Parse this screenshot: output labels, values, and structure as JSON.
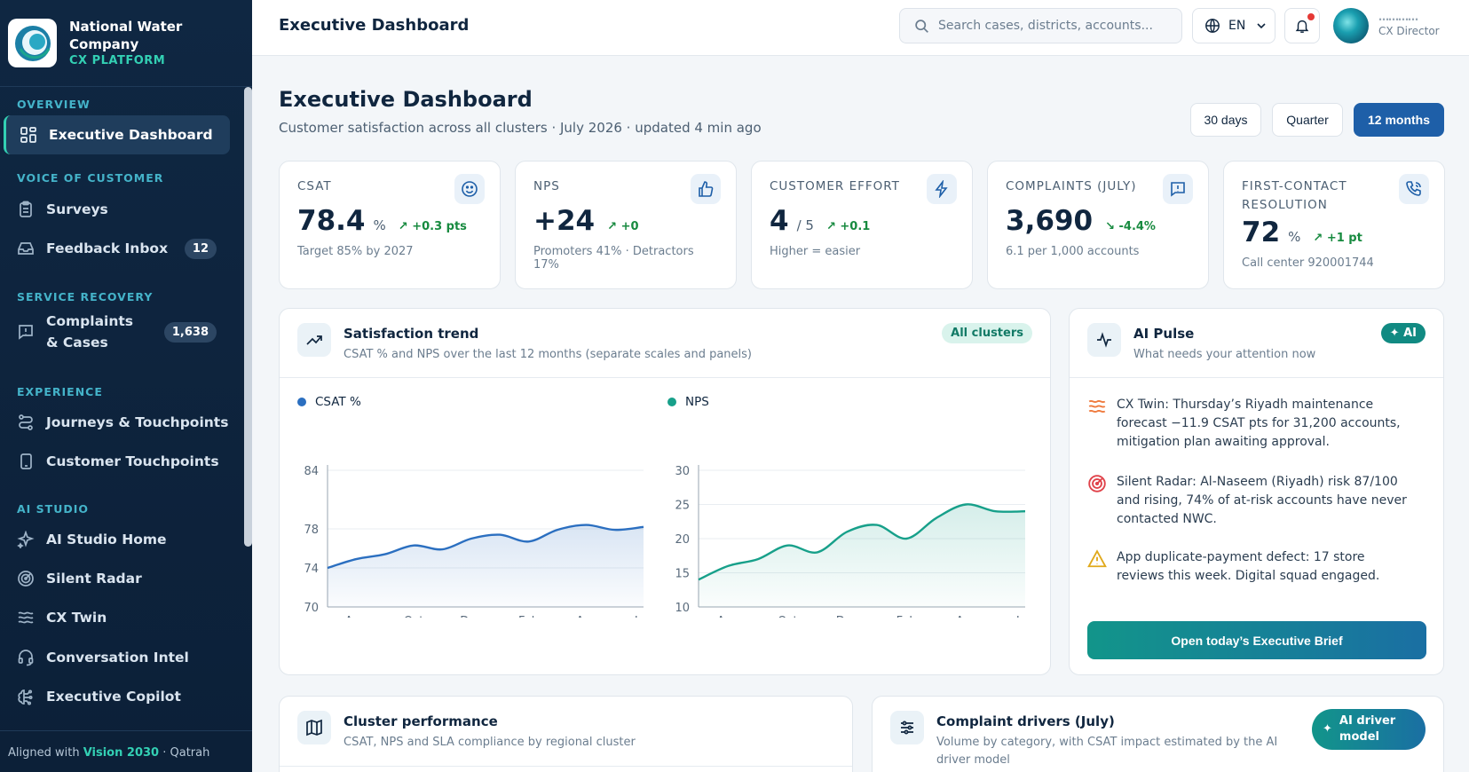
{
  "brand": {
    "name": "National Water Company",
    "platform": "CX PLATFORM"
  },
  "sidebar": {
    "sections": [
      "OVERVIEW",
      "VOICE OF CUSTOMER",
      "SERVICE RECOVERY",
      "EXPERIENCE",
      "AI STUDIO"
    ],
    "items": [
      {
        "label": "Executive Dashboard",
        "icon": "dashboard-icon",
        "active": true
      },
      {
        "label": "Surveys",
        "icon": "clipboard-icon"
      },
      {
        "label": "Feedback Inbox",
        "icon": "inbox-icon",
        "badge": "12"
      },
      {
        "label": "Complaints & Cases",
        "icon": "message-alert-icon",
        "badge": "1,638"
      },
      {
        "label": "Journeys & Touchpoints",
        "icon": "route-icon"
      },
      {
        "label": "Customer Touchpoints",
        "icon": "tablet-icon"
      },
      {
        "label": "AI Studio Home",
        "icon": "sparkles-icon"
      },
      {
        "label": "Silent Radar",
        "icon": "radar-icon"
      },
      {
        "label": "CX Twin",
        "icon": "waves-icon"
      },
      {
        "label": "Conversation Intel",
        "icon": "headset-icon"
      },
      {
        "label": "Executive Copilot",
        "icon": "brain-icon"
      }
    ],
    "footer_prefix": "Aligned with ",
    "footer_highlight": "Vision 2030",
    "footer_suffix": " · Qatrah"
  },
  "header": {
    "title": "Executive Dashboard",
    "search_placeholder": "Search cases, districts, accounts...",
    "language": "EN",
    "user_name": "…………",
    "user_role": "CX Director"
  },
  "page": {
    "title": "Executive Dashboard",
    "subtitle": "Customer satisfaction across all clusters · July 2026 · updated 4 min ago",
    "ranges": [
      "30 days",
      "Quarter",
      "12 months"
    ],
    "active_range": "12 months"
  },
  "kpis": [
    {
      "label": "CSAT",
      "value": "78.4",
      "unit": "%",
      "delta": "+0.3 pts",
      "direction": "up",
      "note": "Target 85% by 2027",
      "icon": "smile-icon"
    },
    {
      "label": "NPS",
      "value": "+24",
      "unit": "",
      "delta": "+0",
      "direction": "up",
      "note": "Promoters 41% · Detractors 17%",
      "icon": "thumbs-up-icon"
    },
    {
      "label": "CUSTOMER EFFORT",
      "value": "4",
      "unit": "/ 5",
      "delta": "+0.1",
      "direction": "up",
      "note": "Higher = easier",
      "icon": "bolt-icon"
    },
    {
      "label": "COMPLAINTS (JULY)",
      "value": "3,690",
      "unit": "",
      "delta": "-4.4%",
      "direction": "down",
      "note": "6.1 per 1,000 accounts",
      "icon": "message-alert-icon"
    },
    {
      "label": "FIRST-CONTACT RESOLUTION",
      "value": "72",
      "unit": "%",
      "delta": "+1 pt",
      "direction": "up",
      "note": "Call center 920001744",
      "icon": "phone-icon"
    }
  ],
  "trend": {
    "title": "Satisfaction trend",
    "subtitle": "CSAT % and NPS over the last 12 months (separate scales and panels)",
    "pill": "All clusters"
  },
  "chart_data": [
    {
      "type": "area",
      "series": [
        {
          "name": "CSAT %",
          "values": [
            74.0,
            74.9,
            75.4,
            76.3,
            75.9,
            77.0,
            77.4,
            76.7,
            77.9,
            78.4,
            77.9,
            78.2
          ]
        }
      ],
      "x": [
        "Jul",
        "Aug",
        "Sep",
        "Oct",
        "Nov",
        "Dec",
        "Jan",
        "Feb",
        "Mar",
        "Apr",
        "May",
        "Jun"
      ],
      "xticks": [
        "Aug",
        "Oct",
        "Dec",
        "Feb",
        "Apr",
        "Jun"
      ],
      "yticks": [
        "84",
        "78",
        "74",
        "70"
      ],
      "ylim": [
        70,
        84
      ],
      "color": "#2b6fc0"
    },
    {
      "type": "area",
      "series": [
        {
          "name": "NPS",
          "values": [
            14,
            16,
            17,
            19,
            18,
            21,
            22,
            20,
            23,
            25,
            24,
            24
          ]
        }
      ],
      "x": [
        "Jul",
        "Aug",
        "Sep",
        "Oct",
        "Nov",
        "Dec",
        "Jan",
        "Feb",
        "Mar",
        "Apr",
        "May",
        "Jun"
      ],
      "xticks": [
        "Aug",
        "Oct",
        "Dec",
        "Feb",
        "Apr",
        "Jun"
      ],
      "yticks": [
        "30",
        "25",
        "20",
        "15",
        "10"
      ],
      "ylim": [
        10,
        30
      ],
      "color": "#17a08a"
    }
  ],
  "pulse": {
    "title": "AI Pulse",
    "subtitle": "What needs your attention now",
    "badge": "AI",
    "items": [
      {
        "text": "CX Twin: Thursday’s Riyadh maintenance forecast −11.9 CSAT pts for 31,200 accounts, mitigation plan awaiting approval.",
        "icon": "waves-icon"
      },
      {
        "text": "Silent Radar: Al-Naseem (Riyadh) risk 87/100 and rising, 74% of at-risk accounts have never contacted NWC.",
        "icon": "radar-icon"
      },
      {
        "text": "App duplicate-payment defect: 17 store reviews this week. Digital squad engaged.",
        "icon": "warning-icon"
      }
    ],
    "button": "Open today’s Executive Brief"
  },
  "cluster": {
    "title": "Cluster performance",
    "subtitle": "CSAT, NPS and SLA compliance by regional cluster"
  },
  "drivers": {
    "title": "Complaint drivers (July)",
    "subtitle": "Volume by category, with CSAT impact estimated by the AI driver model",
    "button": "AI driver model"
  },
  "colors": {
    "sidebar": "#0f2742",
    "accent": "#33d0b4",
    "primary": "#1e5fa8",
    "positive": "#178a3f"
  }
}
